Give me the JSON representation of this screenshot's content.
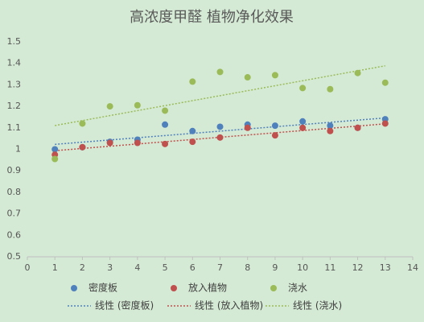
{
  "chart_data": {
    "type": "scatter",
    "title": "高浓度甲醛 植物净化效果",
    "x": [
      1,
      2,
      3,
      4,
      5,
      6,
      7,
      8,
      9,
      10,
      11,
      12,
      13
    ],
    "series": [
      {
        "name": "密度板",
        "color": "#4f81bd",
        "values": [
          1.0,
          1.01,
          1.035,
          1.045,
          1.115,
          1.085,
          1.105,
          1.115,
          1.11,
          1.13,
          1.11,
          1.1,
          1.14
        ]
      },
      {
        "name": "放入植物",
        "color": "#c0504d",
        "values": [
          0.975,
          1.01,
          1.03,
          1.03,
          1.025,
          1.035,
          1.055,
          1.1,
          1.065,
          1.1,
          1.085,
          1.1,
          1.12
        ]
      },
      {
        "name": "浇水",
        "color": "#9bbb59",
        "values": [
          0.955,
          1.12,
          1.2,
          1.205,
          1.18,
          1.315,
          1.36,
          1.335,
          1.345,
          1.285,
          1.28,
          1.355,
          1.31
        ]
      }
    ],
    "trendlines": [
      "线性 (密度板)",
      "线性 (放入植物)",
      "线性 (浇水)"
    ],
    "xlim": [
      0,
      14
    ],
    "xticks": [
      0,
      1,
      2,
      3,
      4,
      5,
      6,
      7,
      8,
      9,
      10,
      11,
      12,
      13,
      14
    ],
    "ylim": [
      0.5,
      1.5
    ],
    "yticks": [
      0.5,
      0.6,
      0.7,
      0.8,
      0.9,
      1,
      1.1,
      1.2,
      1.3,
      1.4,
      1.5
    ],
    "grid": false
  }
}
